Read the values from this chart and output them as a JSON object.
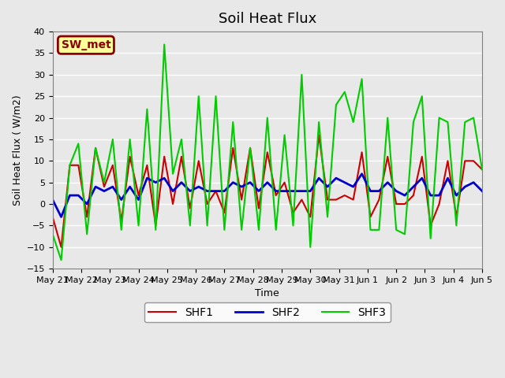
{
  "title": "Soil Heat Flux",
  "ylabel": "Soil Heat Flux ( W/m2)",
  "xlabel": "Time",
  "ylim": [
    -15,
    40
  ],
  "background_color": "#e8e8e8",
  "plot_bg_color": "#e8e8e8",
  "grid_color": "white",
  "annotation_text": "SW_met",
  "annotation_box_color": "#ffff99",
  "annotation_text_color": "#8B0000",
  "x_labels": [
    "May 21",
    "May 22",
    "May 23",
    "May 24",
    "May 25",
    "May 26",
    "May 27",
    "May 28",
    "May 29",
    "May 30",
    "May 31",
    "Jun 1",
    "Jun 2",
    "Jun 3",
    "Jun 4",
    "Jun 5"
  ],
  "shf1_color": "#cc0000",
  "shf2_color": "#0000cc",
  "shf3_color": "#00cc00",
  "shf1_lw": 1.5,
  "shf2_lw": 2.0,
  "shf3_lw": 1.5,
  "shf1": [
    -3,
    -10,
    9,
    9,
    -3,
    13,
    4,
    9,
    -4,
    11,
    2,
    9,
    -5,
    11,
    0,
    11,
    -1,
    10,
    0,
    3,
    -2,
    13,
    1,
    13,
    -1,
    12,
    2,
    5,
    -2,
    1,
    -3,
    16,
    1,
    1,
    2,
    1,
    12,
    -3,
    1,
    11,
    0,
    0,
    2,
    11,
    -5,
    0,
    10,
    -3,
    10,
    10,
    8
  ],
  "shf2": [
    1,
    -3,
    2,
    2,
    0,
    4,
    3,
    4,
    1,
    4,
    1,
    6,
    5,
    6,
    3,
    5,
    3,
    4,
    3,
    3,
    3,
    5,
    4,
    5,
    3,
    5,
    3,
    3,
    3,
    3,
    3,
    6,
    4,
    6,
    5,
    4,
    7,
    3,
    3,
    5,
    3,
    2,
    4,
    6,
    2,
    2,
    6,
    2,
    4,
    5,
    3
  ],
  "shf3": [
    -7,
    -13,
    9,
    14,
    -7,
    13,
    5,
    15,
    -6,
    15,
    -5,
    22,
    -6,
    37,
    7,
    15,
    -5,
    25,
    -5,
    25,
    -6,
    19,
    -6,
    13,
    -6,
    20,
    -6,
    16,
    -5,
    30,
    -10,
    19,
    -3,
    23,
    26,
    19,
    29,
    -6,
    -6,
    20,
    -6,
    -7,
    19,
    25,
    -8,
    20,
    19,
    -5,
    19,
    20,
    8
  ]
}
